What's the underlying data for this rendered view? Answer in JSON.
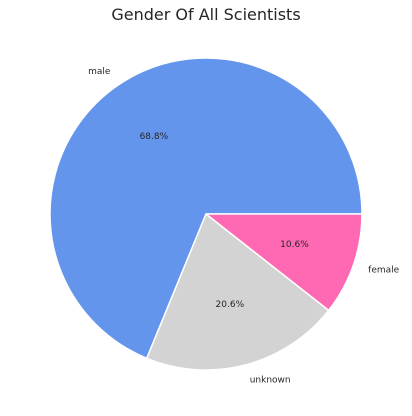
{
  "chart_data": {
    "type": "pie",
    "title": "Gender Of All Scientists",
    "slices": [
      {
        "label": "male",
        "value": 68.8,
        "pct_label": "68.8%",
        "color": "#6495ED"
      },
      {
        "label": "unknown",
        "value": 20.6,
        "pct_label": "20.6%",
        "color": "#D3D3D3"
      },
      {
        "label": "female",
        "value": 10.6,
        "pct_label": "10.6%",
        "color": "#FF69B4"
      }
    ],
    "start_angle_deg": 0,
    "direction": "counterclockwise",
    "slice_edge_color": "#ffffff"
  }
}
